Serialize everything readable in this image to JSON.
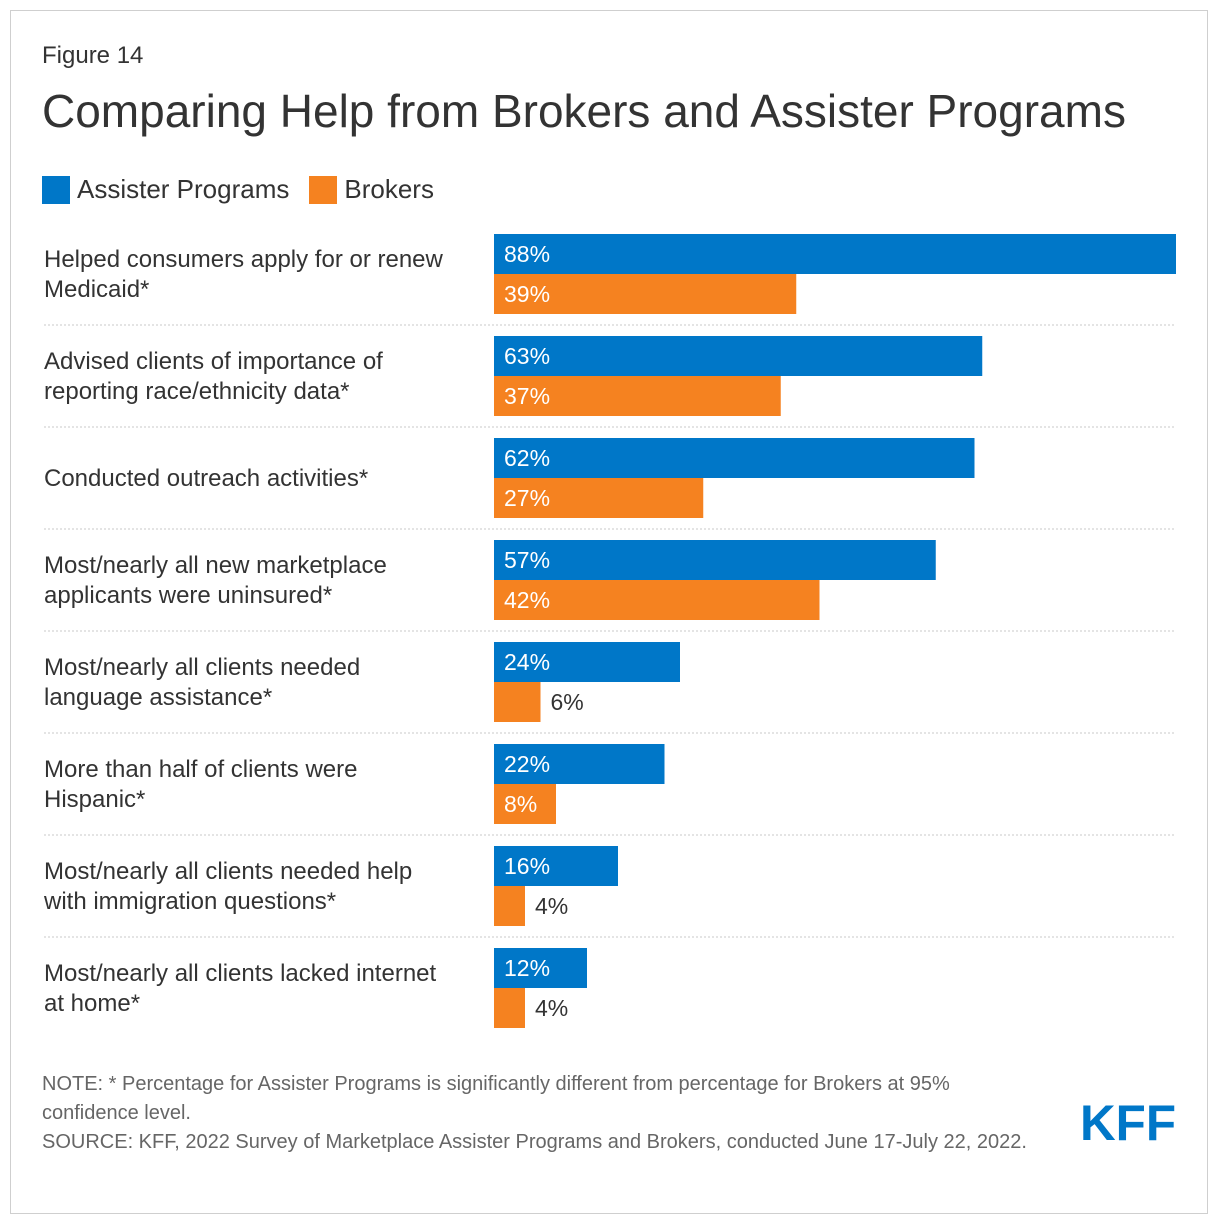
{
  "figure_label": "Figure 14",
  "title": "Comparing Help from Brokers and Assister Programs",
  "note": "NOTE: * Percentage for Assister Programs is significantly different from percentage for Brokers at 95% confidence level.",
  "source": "SOURCE: KFF, 2022 Survey of Marketplace Assister Programs and Brokers, conducted June 17-July 22, 2022.",
  "logo_text": "KFF",
  "colors": {
    "assister": "#0077c8",
    "broker": "#f58220",
    "logo": "#0077c8"
  },
  "chart_data": {
    "type": "bar",
    "orientation": "horizontal",
    "categories": [
      [
        "Helped consumers apply for or renew",
        "Medicaid*"
      ],
      [
        "Advised clients of importance of",
        "reporting race/ethnicity data*"
      ],
      [
        "Conducted outreach activities*"
      ],
      [
        "Most/nearly all new marketplace",
        "applicants were uninsured*"
      ],
      [
        "Most/nearly all clients needed",
        "language assistance*"
      ],
      [
        "More than half of clients were",
        "Hispanic*"
      ],
      [
        "Most/nearly all clients needed help",
        "with immigration questions*"
      ],
      [
        "Most/nearly all clients lacked internet",
        "at home*"
      ]
    ],
    "series": [
      {
        "name": "Assister Programs",
        "values": [
          88,
          63,
          62,
          57,
          24,
          22,
          16,
          12
        ]
      },
      {
        "name": "Brokers",
        "values": [
          39,
          37,
          27,
          42,
          6,
          8,
          4,
          4
        ]
      }
    ],
    "value_suffix": "%",
    "xlim": [
      0,
      88
    ],
    "legend": "top-left",
    "grid": false
  }
}
